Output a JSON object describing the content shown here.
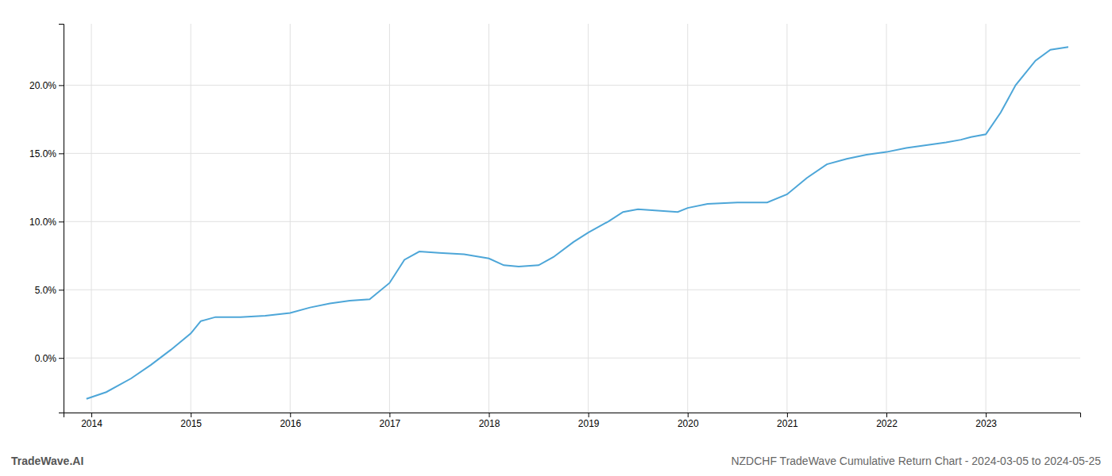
{
  "chart_data": {
    "type": "line",
    "title": "NZDCHF TradeWave Cumulative Return Chart - 2024-03-05 to 2024-05-25",
    "annotations": [
      "TradeWave.AI"
    ],
    "color": "#4da6d8",
    "grid": true,
    "x": [
      2013.95,
      2014.15,
      2014.4,
      2014.6,
      2014.8,
      2015.0,
      2015.1,
      2015.25,
      2015.5,
      2015.75,
      2016.0,
      2016.2,
      2016.4,
      2016.6,
      2016.8,
      2017.0,
      2017.15,
      2017.3,
      2017.5,
      2017.75,
      2018.0,
      2018.15,
      2018.3,
      2018.5,
      2018.65,
      2018.85,
      2019.0,
      2019.2,
      2019.35,
      2019.5,
      2019.7,
      2019.9,
      2020.0,
      2020.2,
      2020.5,
      2020.8,
      2021.0,
      2021.2,
      2021.4,
      2021.6,
      2021.8,
      2022.0,
      2022.2,
      2022.4,
      2022.6,
      2022.75,
      2022.85,
      2023.0,
      2023.15,
      2023.3,
      2023.5,
      2023.65,
      2023.83
    ],
    "values": [
      -0.03,
      -0.025,
      -0.015,
      -0.005,
      0.006,
      0.018,
      0.027,
      0.03,
      0.03,
      0.031,
      0.033,
      0.037,
      0.04,
      0.042,
      0.043,
      0.055,
      0.072,
      0.078,
      0.077,
      0.076,
      0.073,
      0.068,
      0.067,
      0.068,
      0.074,
      0.085,
      0.092,
      0.1,
      0.107,
      0.109,
      0.108,
      0.107,
      0.11,
      0.113,
      0.114,
      0.114,
      0.12,
      0.132,
      0.142,
      0.146,
      0.149,
      0.151,
      0.154,
      0.156,
      0.158,
      0.16,
      0.162,
      0.164,
      0.18,
      0.2,
      0.218,
      0.226,
      0.228
    ],
    "xlim": [
      2013.72,
      2023.95
    ],
    "xticks": [
      2014,
      2015,
      2016,
      2017,
      2018,
      2019,
      2020,
      2021,
      2022,
      2023
    ],
    "ylim": [
      -0.04,
      0.245
    ],
    "yticks": [
      {
        "value": 0.0,
        "label": "0.0%"
      },
      {
        "value": 0.05,
        "label": "5.0%"
      },
      {
        "value": 0.1,
        "label": "10.0%"
      },
      {
        "value": 0.15,
        "label": "15.0%"
      },
      {
        "value": 0.2,
        "label": "20.0%"
      }
    ]
  }
}
